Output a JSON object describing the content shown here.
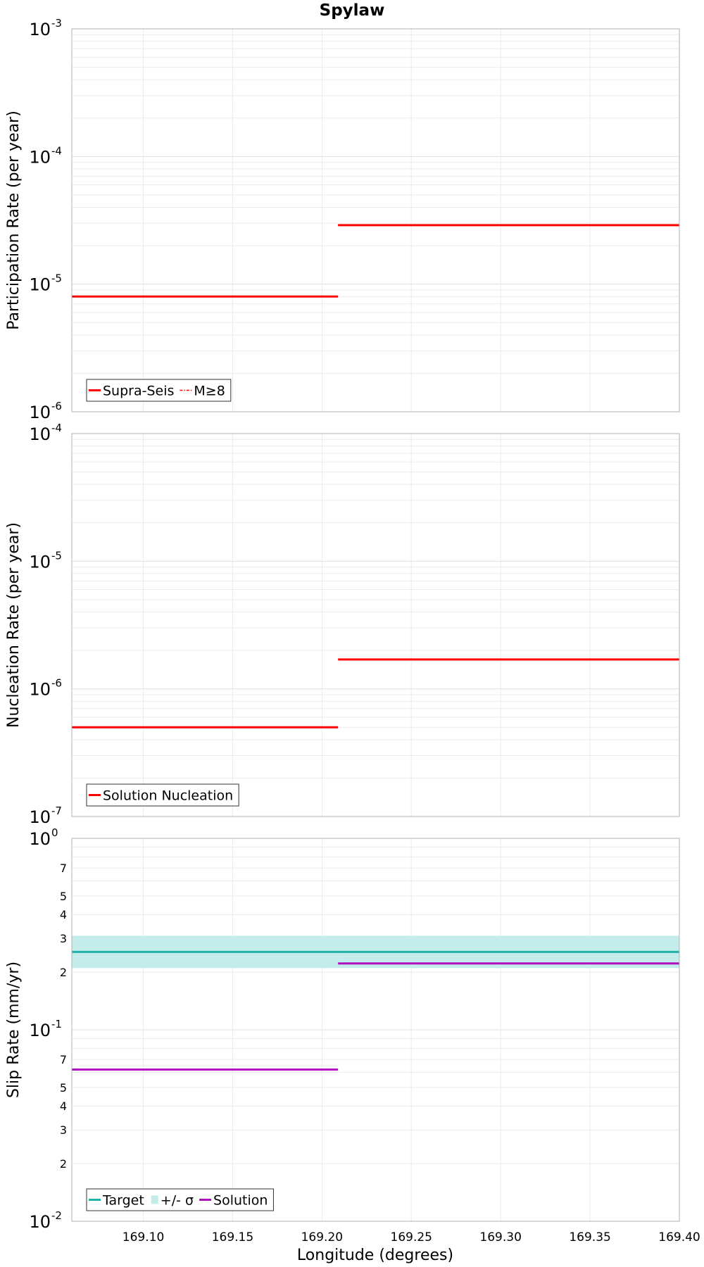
{
  "figure": {
    "title": "Spylaw",
    "xlabel": "Longitude (degrees)",
    "x_ticks": [
      "169.10",
      "169.15",
      "169.20",
      "169.25",
      "169.30",
      "169.35",
      "169.40"
    ]
  },
  "colors": {
    "red": "#ff0000",
    "teal": "#20b2aa",
    "band": "#c3ecea",
    "purple": "#b010c0",
    "grid": "#ebebeb",
    "frame": "#b0b0b0"
  },
  "chart_data": [
    {
      "type": "line",
      "ylabel": "Participation Rate (per year)",
      "yscale": "log",
      "xlim": [
        169.06,
        169.4
      ],
      "ylim": [
        1e-06,
        0.001
      ],
      "y_ticks": [
        {
          "base": "10",
          "exp": "-6"
        },
        {
          "base": "10",
          "exp": "-5"
        },
        {
          "base": "10",
          "exp": "-4"
        },
        {
          "base": "10",
          "exp": "-3"
        }
      ],
      "legend": {
        "position": "bottom-left",
        "entries": [
          {
            "label": "Supra-Seis",
            "style": "solid",
            "color": "#ff0000"
          },
          {
            "label": "M≥8",
            "style": "dashdot",
            "color": "#ff0000"
          }
        ]
      },
      "series": [
        {
          "name": "Supra-Seis",
          "style": "solid",
          "color": "#ff0000",
          "segments": [
            {
              "x": [
                169.06,
                169.209
              ],
              "y": 8e-06
            },
            {
              "x": [
                169.209,
                169.4
              ],
              "y": 2.9e-05
            }
          ]
        },
        {
          "name": "M≥8",
          "style": "dashdot",
          "color": "#ff0000",
          "segments": [
            {
              "x": [
                169.06,
                169.209
              ],
              "y": 8e-06
            },
            {
              "x": [
                169.209,
                169.4
              ],
              "y": 2.9e-05
            }
          ]
        }
      ]
    },
    {
      "type": "line",
      "ylabel": "Nucleation Rate (per year)",
      "yscale": "log",
      "xlim": [
        169.06,
        169.4
      ],
      "ylim": [
        1e-07,
        0.0001
      ],
      "y_ticks": [
        {
          "base": "10",
          "exp": "-7"
        },
        {
          "base": "10",
          "exp": "-6"
        },
        {
          "base": "10",
          "exp": "-5"
        },
        {
          "base": "10",
          "exp": "-4"
        }
      ],
      "legend": {
        "position": "bottom-left",
        "entries": [
          {
            "label": "Solution Nucleation",
            "style": "solid",
            "color": "#ff0000"
          }
        ]
      },
      "series": [
        {
          "name": "Solution Nucleation",
          "style": "solid",
          "color": "#ff0000",
          "segments": [
            {
              "x": [
                169.06,
                169.209
              ],
              "y": 5e-07
            },
            {
              "x": [
                169.209,
                169.4
              ],
              "y": 1.7e-06
            }
          ]
        }
      ]
    },
    {
      "type": "area",
      "ylabel": "Slip Rate (mm/yr)",
      "yscale": "log",
      "xlim": [
        169.06,
        169.4
      ],
      "ylim": [
        0.01,
        1.0
      ],
      "y_ticks": [
        {
          "base": "10",
          "exp": "-2"
        },
        {
          "base": "10",
          "exp": "-1"
        },
        {
          "base": "10",
          "exp": "0"
        }
      ],
      "y_minor_labels": [
        {
          "value": 0.02,
          "label": "2"
        },
        {
          "value": 0.03,
          "label": "3"
        },
        {
          "value": 0.04,
          "label": "4"
        },
        {
          "value": 0.05,
          "label": "5"
        },
        {
          "value": 0.07,
          "label": "7"
        },
        {
          "value": 0.2,
          "label": "2"
        },
        {
          "value": 0.3,
          "label": "3"
        },
        {
          "value": 0.4,
          "label": "4"
        },
        {
          "value": 0.5,
          "label": "5"
        },
        {
          "value": 0.7,
          "label": "7"
        }
      ],
      "legend": {
        "position": "bottom-left",
        "entries": [
          {
            "label": "Target",
            "style": "solid",
            "color": "#20b2aa"
          },
          {
            "label": "+/- σ",
            "style": "band",
            "color": "#c3ecea"
          },
          {
            "label": "Solution",
            "style": "solid",
            "color": "#b010c0"
          }
        ]
      },
      "band": {
        "name": "+/- σ",
        "x": [
          169.06,
          169.4
        ],
        "y_low": 0.21,
        "y_high": 0.31,
        "color": "#c3ecea"
      },
      "series": [
        {
          "name": "Target",
          "style": "solid",
          "color": "#20b2aa",
          "segments": [
            {
              "x": [
                169.06,
                169.4
              ],
              "y": 0.255
            }
          ]
        },
        {
          "name": "Solution",
          "style": "solid",
          "color": "#b010c0",
          "segments": [
            {
              "x": [
                169.06,
                169.209
              ],
              "y": 0.062
            },
            {
              "x": [
                169.209,
                169.4
              ],
              "y": 0.222
            }
          ]
        }
      ]
    }
  ]
}
